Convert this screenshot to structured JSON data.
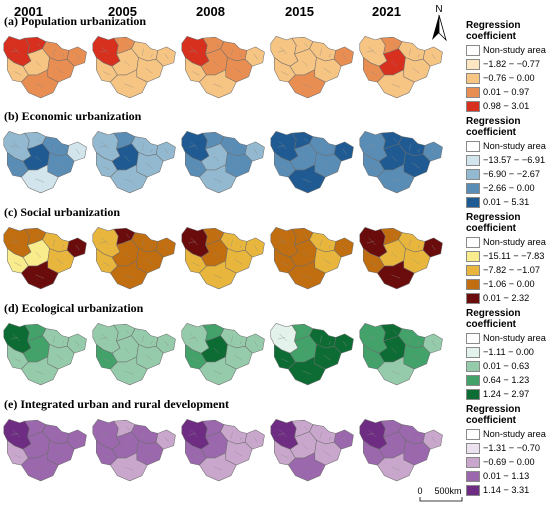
{
  "years": [
    "2001",
    "2005",
    "2008",
    "2015",
    "2021"
  ],
  "north_label": "N",
  "scale": {
    "start": "0",
    "end": "500km"
  },
  "panels": [
    {
      "title": "(a) Population urbanization",
      "legend_title": "Regression coefficient",
      "classes": [
        "Non-study area",
        "−1.82 − −0.77",
        "−0.76 − 0.00",
        "0.01 − 0.97",
        "0.98 − 3.01"
      ],
      "colors": [
        "#ffffff",
        "#fde7c2",
        "#f6c483",
        "#e88e52",
        "#d7301f"
      ],
      "map_classes": [
        [
          4,
          4,
          3,
          3,
          2,
          2
        ],
        [
          4,
          3,
          2,
          2,
          2,
          2
        ],
        [
          4,
          3,
          3,
          2,
          2,
          3
        ],
        [
          2,
          2,
          2,
          3,
          2,
          2
        ],
        [
          2,
          3,
          2,
          2,
          3,
          4
        ]
      ]
    },
    {
      "title": "(b) Economic urbanization",
      "legend_title": "Regression coefficient",
      "classes": [
        "Non-study area",
        "−13.57 − −6.91",
        "−6.90 − −2.67",
        "−2.66 − 0.00",
        "0.01 − 5.31"
      ],
      "colors": [
        "#ffffff",
        "#d2e4ec",
        "#93b9d0",
        "#5a8db6",
        "#1f5b92"
      ],
      "map_classes": [
        [
          2,
          2,
          3,
          1,
          3,
          4
        ],
        [
          2,
          3,
          2,
          2,
          2,
          4
        ],
        [
          4,
          3,
          3,
          2,
          3,
          2
        ],
        [
          4,
          4,
          3,
          4,
          3,
          3
        ],
        [
          3,
          4,
          4,
          3,
          3,
          4
        ]
      ]
    },
    {
      "title": "(c) Social urbanization",
      "legend_title": "Regression coefficient",
      "classes": [
        "Non-study area",
        "−15.11 − −7.83",
        "−7.82 − −1.07",
        "−1.06 − 0.00",
        "0.01 − 2.32"
      ],
      "colors": [
        "#ffffff",
        "#f9ec8c",
        "#e8b63d",
        "#c06e10",
        "#6b0c0c"
      ],
      "map_classes": [
        [
          3,
          3,
          2,
          4,
          1,
          1
        ],
        [
          2,
          4,
          3,
          3,
          2,
          3
        ],
        [
          4,
          3,
          2,
          2,
          2,
          3
        ],
        [
          3,
          3,
          2,
          3,
          3,
          3
        ],
        [
          4,
          3,
          2,
          4,
          3,
          2
        ]
      ]
    },
    {
      "title": "(d) Ecological urbanization",
      "legend_title": "Regression coefficient",
      "classes": [
        "Non-study area",
        "−1.11 − 0.00",
        "0.01 − 0.63",
        "0.64 − 1.23",
        "1.24 − 2.97"
      ],
      "colors": [
        "#ffffff",
        "#e3f2ea",
        "#95cbab",
        "#42a26a",
        "#0d6b34"
      ],
      "map_classes": [
        [
          4,
          3,
          2,
          2,
          2,
          3
        ],
        [
          2,
          2,
          2,
          2,
          3,
          2
        ],
        [
          2,
          3,
          2,
          2,
          3,
          4
        ],
        [
          1,
          3,
          4,
          4,
          4,
          3
        ],
        [
          3,
          4,
          3,
          2,
          3,
          4
        ]
      ]
    },
    {
      "title": "(e) Integrated urban and rural development",
      "legend_title": "Regression coefficient",
      "classes": [
        "Non-study area",
        "−1.31 − −0.70",
        "−0.69 − 0.00",
        "0.01 − 1.13",
        "1.14 − 3.31"
      ],
      "colors": [
        "#ffffff",
        "#ece1ef",
        "#c9a6cc",
        "#9b68ad",
        "#6e2c82"
      ],
      "map_classes": [
        [
          4,
          3,
          3,
          3,
          2,
          3
        ],
        [
          3,
          2,
          3,
          2,
          3,
          3
        ],
        [
          4,
          3,
          2,
          2,
          3,
          3
        ],
        [
          4,
          2,
          2,
          3,
          2,
          2
        ],
        [
          4,
          3,
          3,
          2,
          3,
          3
        ]
      ]
    }
  ]
}
